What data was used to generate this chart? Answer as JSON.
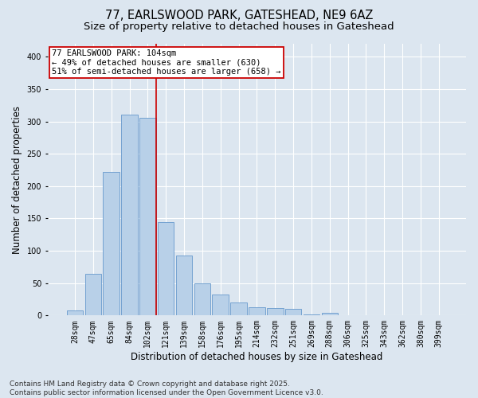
{
  "title": "77, EARLSWOOD PARK, GATESHEAD, NE9 6AZ",
  "subtitle": "Size of property relative to detached houses in Gateshead",
  "xlabel": "Distribution of detached houses by size in Gateshead",
  "ylabel": "Number of detached properties",
  "bar_labels": [
    "28sqm",
    "47sqm",
    "65sqm",
    "84sqm",
    "102sqm",
    "121sqm",
    "139sqm",
    "158sqm",
    "176sqm",
    "195sqm",
    "214sqm",
    "232sqm",
    "251sqm",
    "269sqm",
    "288sqm",
    "306sqm",
    "325sqm",
    "343sqm",
    "362sqm",
    "380sqm",
    "399sqm"
  ],
  "bar_values": [
    8,
    65,
    222,
    310,
    305,
    144,
    93,
    50,
    33,
    20,
    13,
    11,
    10,
    2,
    4,
    1,
    1,
    0,
    0,
    1,
    0
  ],
  "bar_color": "#b8d0e8",
  "bar_edge_color": "#6699cc",
  "vline_color": "#cc0000",
  "vline_x_index": 4,
  "annotation_text": "77 EARLSWOOD PARK: 104sqm\n← 49% of detached houses are smaller (630)\n51% of semi-detached houses are larger (658) →",
  "annotation_box_facecolor": "#ffffff",
  "annotation_box_edgecolor": "#cc0000",
  "ylim": [
    0,
    420
  ],
  "yticks": [
    0,
    50,
    100,
    150,
    200,
    250,
    300,
    350,
    400
  ],
  "footnote": "Contains HM Land Registry data © Crown copyright and database right 2025.\nContains public sector information licensed under the Open Government Licence v3.0.",
  "background_color": "#dce6f0",
  "plot_background": "#dce6f0",
  "title_fontsize": 10.5,
  "subtitle_fontsize": 9.5,
  "ylabel_fontsize": 8.5,
  "xlabel_fontsize": 8.5,
  "tick_fontsize": 7,
  "annotation_fontsize": 7.5,
  "footnote_fontsize": 6.5
}
